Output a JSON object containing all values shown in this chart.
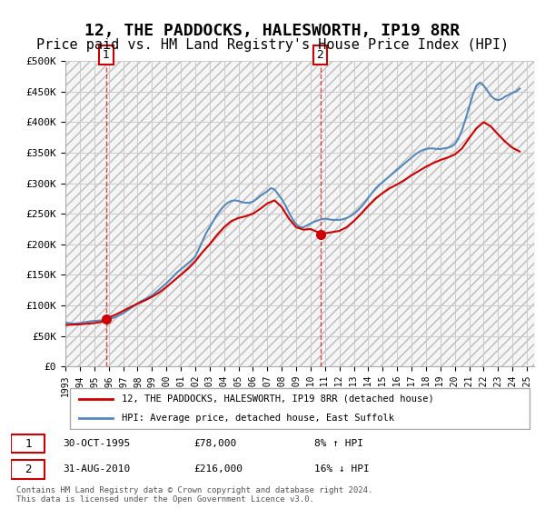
{
  "title": "12, THE PADDOCKS, HALESWORTH, IP19 8RR",
  "subtitle": "Price paid vs. HM Land Registry's House Price Index (HPI)",
  "title_fontsize": 13,
  "subtitle_fontsize": 11,
  "ylabel_ticks": [
    "£0",
    "£50K",
    "£100K",
    "£150K",
    "£200K",
    "£250K",
    "£300K",
    "£350K",
    "£400K",
    "£450K",
    "£500K"
  ],
  "ytick_values": [
    0,
    50000,
    100000,
    150000,
    200000,
    250000,
    300000,
    350000,
    400000,
    450000,
    500000
  ],
  "ylim": [
    0,
    500000
  ],
  "xlim_start": 1993.0,
  "xlim_end": 2025.5,
  "xtick_years": [
    1993,
    1994,
    1995,
    1996,
    1997,
    1998,
    1999,
    2000,
    2001,
    2002,
    2003,
    2004,
    2005,
    2006,
    2007,
    2008,
    2009,
    2010,
    2011,
    2012,
    2013,
    2014,
    2015,
    2016,
    2017,
    2018,
    2019,
    2020,
    2021,
    2022,
    2023,
    2024,
    2025
  ],
  "sale1_x": 1995.83,
  "sale1_y": 78000,
  "sale1_label": "1",
  "sale1_date": "30-OCT-1995",
  "sale1_price": "£78,000",
  "sale1_hpi": "8% ↑ HPI",
  "sale2_x": 2010.67,
  "sale2_y": 216000,
  "sale2_label": "2",
  "sale2_date": "31-AUG-2010",
  "sale2_price": "£216,000",
  "sale2_hpi": "16% ↓ HPI",
  "red_color": "#cc0000",
  "blue_color": "#6699cc",
  "hpi_color": "#5588bb",
  "property_line_color": "#cc0000",
  "marker_vline_color": "#cc0000",
  "grid_color": "#cccccc",
  "bg_color": "#ffffff",
  "hatch_color": "#e8e8e8",
  "legend_box_color": "#cc0000",
  "legend_hpi_color": "#6699cc",
  "footer_text": "Contains HM Land Registry data © Crown copyright and database right 2024.\nThis data is licensed under the Open Government Licence v3.0.",
  "hpi_data_x": [
    1993.0,
    1993.25,
    1993.5,
    1993.75,
    1994.0,
    1994.25,
    1994.5,
    1994.75,
    1995.0,
    1995.25,
    1995.5,
    1995.75,
    1996.0,
    1996.25,
    1996.5,
    1996.75,
    1997.0,
    1997.25,
    1997.5,
    1997.75,
    1998.0,
    1998.25,
    1998.5,
    1998.75,
    1999.0,
    1999.25,
    1999.5,
    1999.75,
    2000.0,
    2000.25,
    2000.5,
    2000.75,
    2001.0,
    2001.25,
    2001.5,
    2001.75,
    2002.0,
    2002.25,
    2002.5,
    2002.75,
    2003.0,
    2003.25,
    2003.5,
    2003.75,
    2004.0,
    2004.25,
    2004.5,
    2004.75,
    2005.0,
    2005.25,
    2005.5,
    2005.75,
    2006.0,
    2006.25,
    2006.5,
    2006.75,
    2007.0,
    2007.25,
    2007.5,
    2007.75,
    2008.0,
    2008.25,
    2008.5,
    2008.75,
    2009.0,
    2009.25,
    2009.5,
    2009.75,
    2010.0,
    2010.25,
    2010.5,
    2010.75,
    2011.0,
    2011.25,
    2011.5,
    2011.75,
    2012.0,
    2012.25,
    2012.5,
    2012.75,
    2013.0,
    2013.25,
    2013.5,
    2013.75,
    2014.0,
    2014.25,
    2014.5,
    2014.75,
    2015.0,
    2015.25,
    2015.5,
    2015.75,
    2016.0,
    2016.25,
    2016.5,
    2016.75,
    2017.0,
    2017.25,
    2017.5,
    2017.75,
    2018.0,
    2018.25,
    2018.5,
    2018.75,
    2019.0,
    2019.25,
    2019.5,
    2019.75,
    2020.0,
    2020.25,
    2020.5,
    2020.75,
    2021.0,
    2021.25,
    2021.5,
    2021.75,
    2022.0,
    2022.25,
    2022.5,
    2022.75,
    2023.0,
    2023.25,
    2023.5,
    2023.75,
    2024.0,
    2024.25,
    2024.5
  ],
  "hpi_data_y": [
    72000,
    71000,
    70000,
    70500,
    71000,
    72000,
    73000,
    74000,
    74500,
    75000,
    75500,
    76000,
    77000,
    79000,
    81000,
    84000,
    87000,
    91000,
    95000,
    99000,
    103000,
    107000,
    110000,
    113000,
    116000,
    121000,
    126000,
    131000,
    136000,
    142000,
    148000,
    154000,
    159000,
    164000,
    169000,
    174000,
    180000,
    192000,
    205000,
    218000,
    228000,
    238000,
    248000,
    256000,
    263000,
    268000,
    271000,
    272000,
    271000,
    269000,
    268000,
    268000,
    270000,
    274000,
    279000,
    283000,
    287000,
    292000,
    290000,
    282000,
    274000,
    264000,
    252000,
    241000,
    233000,
    228000,
    228000,
    231000,
    234000,
    237000,
    239000,
    241000,
    242000,
    241000,
    240000,
    240000,
    240000,
    241000,
    243000,
    246000,
    250000,
    255000,
    261000,
    268000,
    276000,
    284000,
    291000,
    297000,
    302000,
    307000,
    312000,
    317000,
    322000,
    327000,
    332000,
    337000,
    342000,
    347000,
    351000,
    354000,
    356000,
    357000,
    357000,
    356000,
    356000,
    357000,
    358000,
    360000,
    364000,
    373000,
    387000,
    405000,
    425000,
    445000,
    460000,
    465000,
    460000,
    452000,
    443000,
    438000,
    436000,
    438000,
    442000,
    445000,
    448000,
    450000,
    455000
  ],
  "property_data_x": [
    1993.0,
    1993.5,
    1994.0,
    1994.5,
    1995.0,
    1995.5,
    1995.83,
    1996.0,
    1996.5,
    1997.0,
    1997.5,
    1998.0,
    1998.5,
    1999.0,
    1999.5,
    2000.0,
    2000.5,
    2001.0,
    2001.5,
    2002.0,
    2002.5,
    2003.0,
    2003.5,
    2004.0,
    2004.5,
    2005.0,
    2005.5,
    2006.0,
    2006.5,
    2007.0,
    2007.5,
    2008.0,
    2008.5,
    2009.0,
    2009.5,
    2010.0,
    2010.5,
    2010.67,
    2011.0,
    2011.5,
    2012.0,
    2012.5,
    2013.0,
    2013.5,
    2014.0,
    2014.5,
    2015.0,
    2015.5,
    2016.0,
    2016.5,
    2017.0,
    2017.5,
    2018.0,
    2018.5,
    2019.0,
    2019.5,
    2020.0,
    2020.5,
    2021.0,
    2021.5,
    2022.0,
    2022.5,
    2023.0,
    2023.5,
    2024.0,
    2024.5
  ],
  "property_data_y": [
    68000,
    68500,
    69000,
    70000,
    71000,
    73000,
    78000,
    80000,
    85000,
    91000,
    97000,
    103000,
    108000,
    114000,
    121000,
    130000,
    140000,
    150000,
    160000,
    172000,
    187000,
    200000,
    215000,
    228000,
    238000,
    243000,
    246000,
    250000,
    258000,
    267000,
    272000,
    261000,
    242000,
    228000,
    224000,
    225000,
    220000,
    216000,
    218000,
    220000,
    222000,
    228000,
    238000,
    250000,
    263000,
    275000,
    284000,
    292000,
    298000,
    305000,
    313000,
    320000,
    327000,
    333000,
    338000,
    342000,
    347000,
    357000,
    374000,
    390000,
    400000,
    393000,
    380000,
    368000,
    358000,
    352000
  ]
}
